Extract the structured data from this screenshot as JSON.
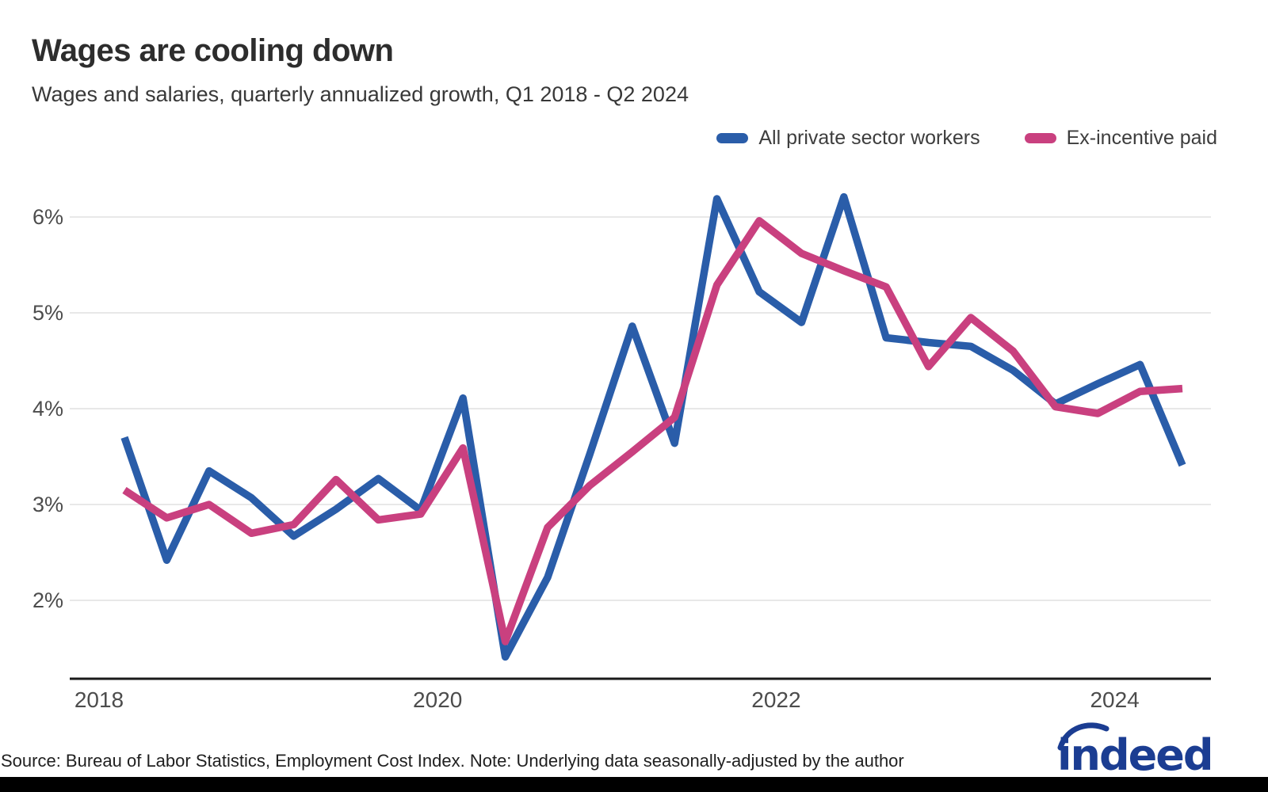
{
  "header": {
    "title": "Wages are cooling down",
    "subtitle": "Wages and salaries, quarterly annualized growth, Q1 2018 - Q2 2024"
  },
  "legend": {
    "items": [
      {
        "label": "All private sector workers"
      },
      {
        "label": "Ex-incentive paid"
      }
    ]
  },
  "footer": {
    "source_note": "Source: Bureau of Labor Statistics, Employment Cost Index. Note: Underlying data seasonally-adjusted by the author",
    "logo_text": "indeed",
    "logo_color": "#1b3d92"
  },
  "colors": {
    "series_blue": "#2a5da9",
    "series_pink": "#c9407f",
    "gridline": "#e0e0e0",
    "axis_line": "#1a1a1a",
    "tick_label": "#4c4c4c"
  },
  "chart_data": {
    "type": "line",
    "x": [
      "Q1 2018",
      "Q2 2018",
      "Q3 2018",
      "Q4 2018",
      "Q1 2019",
      "Q2 2019",
      "Q3 2019",
      "Q4 2019",
      "Q1 2020",
      "Q2 2020",
      "Q3 2020",
      "Q4 2020",
      "Q1 2021",
      "Q2 2021",
      "Q3 2021",
      "Q4 2021",
      "Q1 2022",
      "Q2 2022",
      "Q3 2022",
      "Q4 2022",
      "Q1 2023",
      "Q2 2023",
      "Q3 2023",
      "Q4 2023",
      "Q1 2024",
      "Q2 2024"
    ],
    "series": [
      {
        "name": "All private sector workers",
        "color": "#2a5da9",
        "values": [
          3.7,
          2.42,
          3.35,
          3.07,
          2.67,
          2.95,
          3.27,
          2.94,
          4.11,
          1.41,
          2.24,
          3.53,
          4.86,
          3.64,
          6.19,
          5.22,
          4.9,
          6.21,
          4.74,
          4.69,
          4.65,
          4.4,
          4.05,
          4.26,
          4.46,
          3.41
        ]
      },
      {
        "name": "Ex-incentive paid",
        "color": "#c9407f",
        "values": [
          3.15,
          2.86,
          3.0,
          2.7,
          2.79,
          3.26,
          2.84,
          2.9,
          3.59,
          1.57,
          2.76,
          3.2,
          3.55,
          3.91,
          5.29,
          5.96,
          5.62,
          5.44,
          5.27,
          4.44,
          4.95,
          4.6,
          4.02,
          3.95,
          4.18,
          4.21
        ]
      }
    ],
    "title": "Wages are cooling down",
    "subtitle": "Wages and salaries, quarterly annualized growth, Q1 2018 - Q2 2024",
    "xlabel": "",
    "ylabel": "",
    "y_ticks": [
      2,
      3,
      4,
      5,
      6
    ],
    "y_tick_suffix": "%",
    "x_year_ticks": [
      {
        "label": "2018",
        "quarter_index": 0
      },
      {
        "label": "2020",
        "quarter_index": 8
      },
      {
        "label": "2022",
        "quarter_index": 16
      },
      {
        "label": "2024",
        "quarter_index": 24
      }
    ],
    "ylim": [
      1.18,
      6.45
    ],
    "grid": "horizontal",
    "legend_position": "top-right"
  }
}
